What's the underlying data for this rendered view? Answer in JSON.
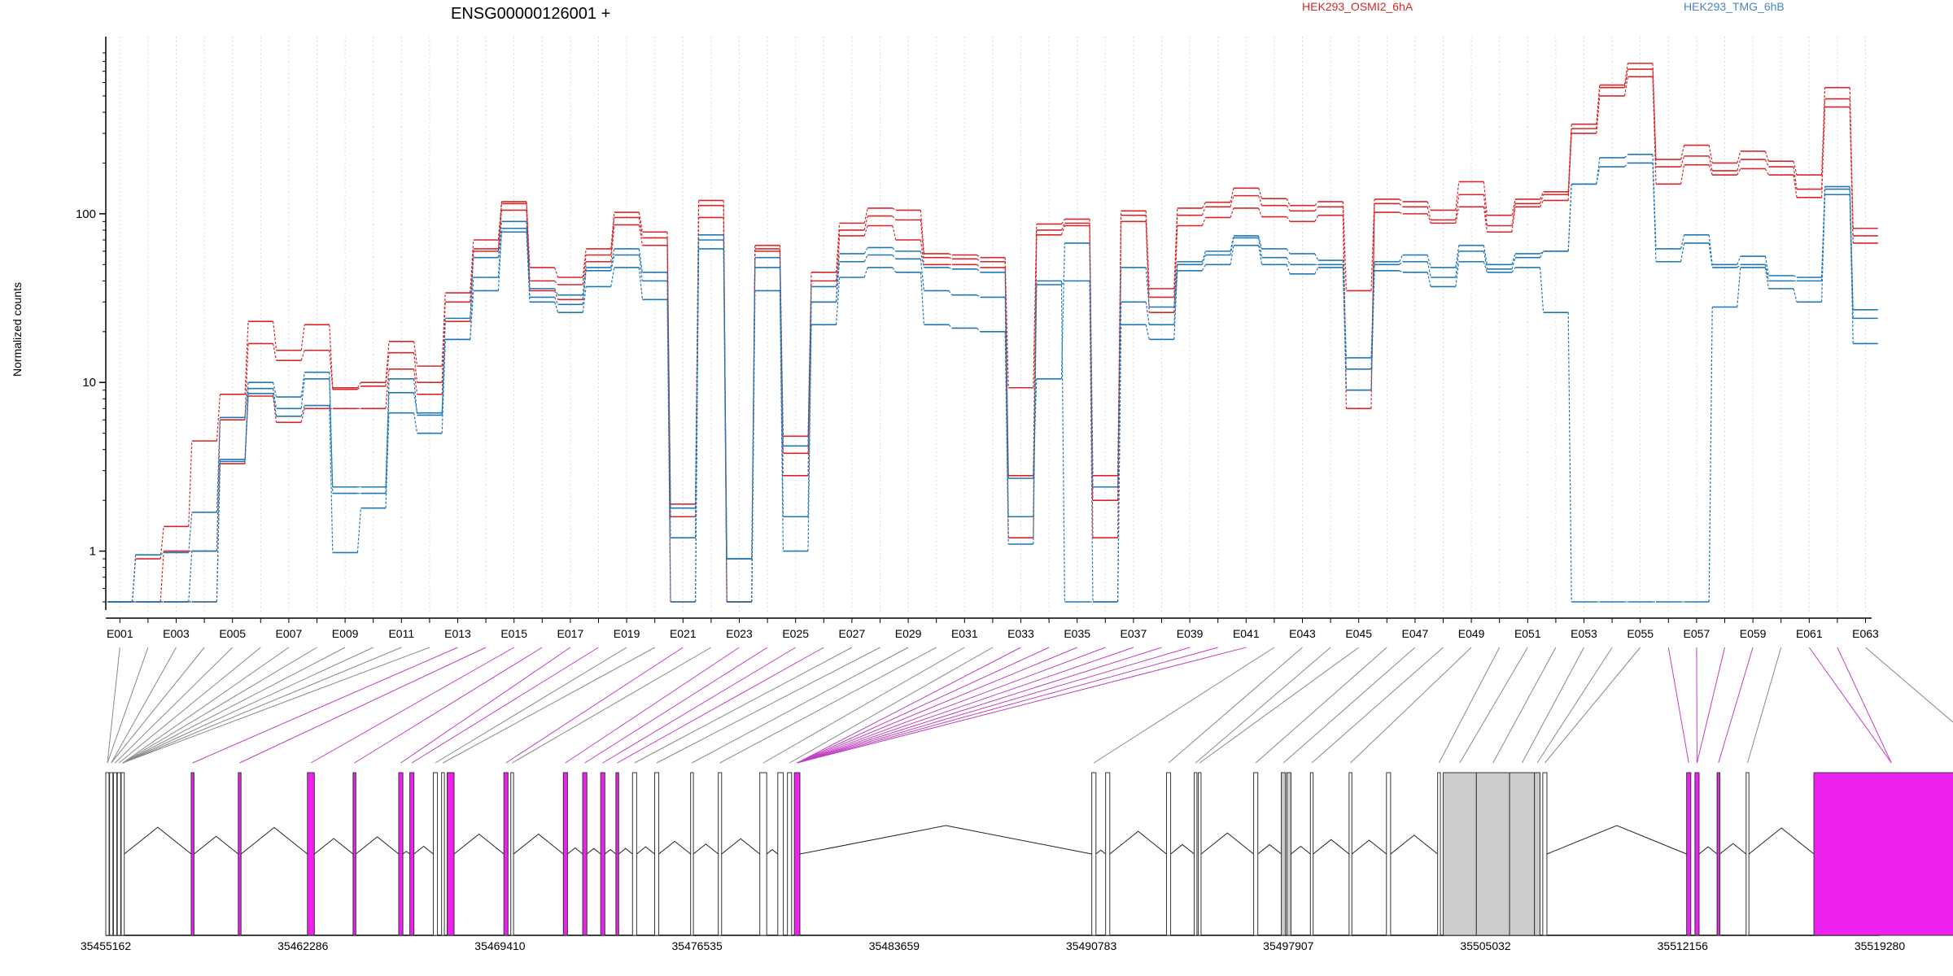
{
  "chart_data": {
    "type": "line",
    "title": "ENSG00000126001 +",
    "ylabel": "Normalized counts",
    "xlabel": "",
    "yscale": "log",
    "ylim": [
      0.5,
      900
    ],
    "yticks": [
      1,
      10,
      100
    ],
    "grid": "vertical dotted lines at each exon bin",
    "legend_position": "top",
    "categories": [
      "E001",
      "E002",
      "E003",
      "E004",
      "E005",
      "E006",
      "E007",
      "E008",
      "E009",
      "E010",
      "E011",
      "E012",
      "E013",
      "E014",
      "E015",
      "E016",
      "E017",
      "E018",
      "E019",
      "E020",
      "E021",
      "E022",
      "E023",
      "E024",
      "E025",
      "E026",
      "E027",
      "E028",
      "E029",
      "E030",
      "E031",
      "E032",
      "E033",
      "E034",
      "E035",
      "E036",
      "E037",
      "E038",
      "E039",
      "E040",
      "E041",
      "E042",
      "E043",
      "E044",
      "E045",
      "E046",
      "E047",
      "E048",
      "E049",
      "E050",
      "E051",
      "E052",
      "E053",
      "E054",
      "E055",
      "E056",
      "E057",
      "E058",
      "E059",
      "E060",
      "E061",
      "E062",
      "E063"
    ],
    "x_tick_labels": [
      "E001",
      "E003",
      "E005",
      "E007",
      "E009",
      "E011",
      "E013",
      "E015",
      "E017",
      "E019",
      "E021",
      "E023",
      "E025",
      "E027",
      "E029",
      "E031",
      "E033",
      "E035",
      "E037",
      "E039",
      "E041",
      "E043",
      "E045",
      "E047",
      "E049",
      "E051",
      "E053",
      "E055",
      "E057",
      "E059",
      "E061",
      "E063"
    ],
    "series": [
      {
        "name": "HEK293_OSMI2_6hA",
        "color": "#d62728",
        "values": [
          0.5,
          0.9,
          1.4,
          4.5,
          8.5,
          23,
          15.5,
          22,
          9.3,
          10,
          17.5,
          12.5,
          34,
          70,
          118,
          48,
          42,
          62,
          102,
          78,
          1.9,
          120,
          0.5,
          65,
          4.8,
          45,
          88,
          108,
          105,
          58,
          57,
          55,
          9.3,
          87,
          93,
          2.8,
          104,
          36,
          108,
          117,
          142,
          123,
          112,
          118,
          35,
          122,
          118,
          105,
          155,
          98,
          122,
          135,
          340,
          580,
          780,
          210,
          255,
          200,
          235,
          205,
          170,
          560,
          82
        ]
      },
      {
        "name": "HEK293_OSMI2_6hA",
        "color": "#d62728",
        "values": [
          0.5,
          0.5,
          1.0,
          1.0,
          6,
          17,
          13.5,
          15.5,
          9.1,
          9.5,
          15,
          10,
          30,
          60,
          115,
          40,
          38,
          57,
          95,
          72,
          1.6,
          112,
          0.5,
          62,
          3.8,
          40,
          80,
          97,
          92,
          55,
          54,
          52,
          2.8,
          80,
          88,
          2.0,
          98,
          32,
          98,
          110,
          128,
          112,
          104,
          110,
          9,
          115,
          110,
          92,
          130,
          85,
          115,
          130,
          320,
          560,
          720,
          190,
          220,
          180,
          210,
          190,
          140,
          480,
          74
        ]
      },
      {
        "name": "HEK293_OSMI2_6hA",
        "color": "#d62728",
        "values": [
          0.5,
          0.5,
          0.5,
          0.5,
          3.3,
          8.3,
          5.8,
          7.0,
          7.0,
          7.0,
          12,
          8.5,
          23,
          62,
          105,
          35,
          31,
          52,
          86,
          65,
          0.5,
          95,
          0.5,
          60,
          2.8,
          30,
          74,
          85,
          70,
          50,
          50,
          48,
          1.2,
          75,
          85,
          1.2,
          90,
          26,
          85,
          95,
          108,
          96,
          90,
          98,
          7,
          102,
          100,
          88,
          110,
          78,
          110,
          120,
          300,
          500,
          650,
          150,
          195,
          170,
          185,
          170,
          125,
          430,
          67
        ]
      },
      {
        "name": "HEK293_TMG_6hB",
        "color": "#1f77b4",
        "values": [
          0.5,
          0.95,
          0.98,
          1.7,
          6.2,
          10,
          8.2,
          11.5,
          2.4,
          2.4,
          10.5,
          6.4,
          24,
          55,
          90,
          36,
          33,
          48,
          62,
          45,
          1.8,
          75,
          0.9,
          55,
          4.2,
          37,
          58,
          63,
          60,
          48,
          47,
          45,
          2.7,
          10.5,
          67,
          2.4,
          48,
          28,
          52,
          60,
          74,
          62,
          58,
          53,
          14,
          52,
          57,
          48,
          65,
          50,
          58,
          60,
          150,
          215,
          225,
          62,
          75,
          50,
          56,
          43,
          42,
          145,
          27
        ]
      },
      {
        "name": "HEK293_TMG_6hB",
        "color": "#1f77b4",
        "values": [
          0.5,
          0.5,
          0.5,
          1.0,
          3.5,
          9.2,
          7.0,
          10.5,
          2.2,
          2.2,
          8.7,
          6.6,
          18,
          42,
          82,
          32,
          29,
          46,
          57,
          40,
          1.2,
          70,
          0.9,
          48,
          1.6,
          30,
          52,
          57,
          54,
          35,
          33,
          32,
          1.6,
          40,
          0.5,
          0.5,
          30,
          22,
          50,
          57,
          72,
          55,
          50,
          50,
          12,
          50,
          52,
          42,
          60,
          47,
          55,
          60,
          150,
          190,
          200,
          52,
          67,
          48,
          50,
          40,
          40,
          140,
          24
        ]
      },
      {
        "name": "HEK293_TMG_6hB",
        "color": "#1f77b4",
        "values": [
          0.5,
          0.5,
          0.5,
          0.5,
          3.4,
          8.6,
          6.3,
          7.3,
          0.98,
          1.8,
          6.6,
          5.0,
          18,
          35,
          78,
          30,
          26,
          37,
          48,
          31,
          0.5,
          62,
          0.5,
          35,
          1.0,
          22,
          42,
          48,
          45,
          22,
          21,
          20,
          1.1,
          38,
          40,
          0.5,
          22,
          18,
          46,
          50,
          65,
          50,
          44,
          48,
          9,
          46,
          45,
          37,
          52,
          45,
          48,
          26,
          0.5,
          0.5,
          0.5,
          0.5,
          0.5,
          28,
          48,
          36,
          30,
          130,
          17
        ]
      }
    ]
  },
  "legend": {
    "labels": [
      "HEK293_OSMI2_6hA",
      "HEK293_TMG_6hB"
    ],
    "colors": [
      "#d62728",
      "#1f77b4"
    ]
  },
  "gene_model": {
    "coordinate_labels": [
      "35455162",
      "35462286",
      "35469410",
      "35476535",
      "35483659",
      "35490783",
      "35497907",
      "35505032",
      "35512156",
      "35519280"
    ],
    "coord_range": [
      35455162,
      35519280
    ],
    "feature_colors": {
      "significant": "#ee22ee",
      "normal": "#ffffff",
      "collapsed": "#cccccc",
      "outline": "#333333"
    },
    "exons": [
      {
        "start": 35455162,
        "end": 35455280,
        "type": "normal"
      },
      {
        "start": 35455300,
        "end": 35455420,
        "type": "normal"
      },
      {
        "start": 35455440,
        "end": 35455560,
        "type": "normal"
      },
      {
        "start": 35455580,
        "end": 35455700,
        "type": "normal"
      },
      {
        "start": 35455720,
        "end": 35455830,
        "type": "normal"
      },
      {
        "start": 35458250,
        "end": 35458350,
        "type": "significant"
      },
      {
        "start": 35459950,
        "end": 35460050,
        "type": "significant"
      },
      {
        "start": 35462450,
        "end": 35462700,
        "type": "significant"
      },
      {
        "start": 35464100,
        "end": 35464200,
        "type": "significant"
      },
      {
        "start": 35465750,
        "end": 35465900,
        "type": "significant"
      },
      {
        "start": 35466150,
        "end": 35466300,
        "type": "significant"
      },
      {
        "start": 35467000,
        "end": 35467150,
        "type": "normal"
      },
      {
        "start": 35467300,
        "end": 35467400,
        "type": "normal"
      },
      {
        "start": 35467500,
        "end": 35467750,
        "type": "significant"
      },
      {
        "start": 35469550,
        "end": 35469700,
        "type": "significant"
      },
      {
        "start": 35469800,
        "end": 35469900,
        "type": "normal"
      },
      {
        "start": 35471700,
        "end": 35471850,
        "type": "significant"
      },
      {
        "start": 35472400,
        "end": 35472550,
        "type": "significant"
      },
      {
        "start": 35473050,
        "end": 35473200,
        "type": "significant"
      },
      {
        "start": 35473600,
        "end": 35473700,
        "type": "significant"
      },
      {
        "start": 35474200,
        "end": 35474350,
        "type": "normal"
      },
      {
        "start": 35475000,
        "end": 35475150,
        "type": "normal"
      },
      {
        "start": 35476300,
        "end": 35476400,
        "type": "normal"
      },
      {
        "start": 35477300,
        "end": 35477420,
        "type": "normal"
      },
      {
        "start": 35478800,
        "end": 35479050,
        "type": "normal"
      },
      {
        "start": 35479450,
        "end": 35479650,
        "type": "normal"
      },
      {
        "start": 35479800,
        "end": 35479950,
        "type": "normal"
      },
      {
        "start": 35480050,
        "end": 35480250,
        "type": "significant"
      },
      {
        "start": 35490800,
        "end": 35490950,
        "type": "normal"
      },
      {
        "start": 35491300,
        "end": 35491450,
        "type": "normal"
      },
      {
        "start": 35493500,
        "end": 35493650,
        "type": "normal"
      },
      {
        "start": 35494500,
        "end": 35494600,
        "type": "normal"
      },
      {
        "start": 35494650,
        "end": 35494750,
        "type": "normal"
      },
      {
        "start": 35496650,
        "end": 35496800,
        "type": "normal"
      },
      {
        "start": 35497650,
        "end": 35497800,
        "type": "collapsed"
      },
      {
        "start": 35497850,
        "end": 35498000,
        "type": "collapsed"
      },
      {
        "start": 35498700,
        "end": 35498800,
        "type": "normal"
      },
      {
        "start": 35500100,
        "end": 35500200,
        "type": "normal"
      },
      {
        "start": 35501450,
        "end": 35501600,
        "type": "normal"
      },
      {
        "start": 35503300,
        "end": 35503400,
        "type": "normal"
      },
      {
        "start": 35503500,
        "end": 35504700,
        "type": "collapsed"
      },
      {
        "start": 35504700,
        "end": 35505900,
        "type": "collapsed"
      },
      {
        "start": 35505900,
        "end": 35506800,
        "type": "collapsed"
      },
      {
        "start": 35506800,
        "end": 35507000,
        "type": "collapsed"
      },
      {
        "start": 35507100,
        "end": 35507250,
        "type": "normal"
      },
      {
        "start": 35512300,
        "end": 35512450,
        "type": "significant"
      },
      {
        "start": 35512600,
        "end": 35512750,
        "type": "significant"
      },
      {
        "start": 35513400,
        "end": 35513500,
        "type": "significant"
      },
      {
        "start": 35514450,
        "end": 35514550,
        "type": "normal"
      },
      {
        "start": 35516900,
        "end": 35522500,
        "type": "significant"
      },
      {
        "start": 35522500,
        "end": 35524800,
        "type": "collapsed"
      }
    ],
    "connectors": [
      {
        "bin": 0,
        "exon": 0,
        "type": "normal"
      },
      {
        "bin": 1,
        "exon": 0,
        "type": "normal"
      },
      {
        "bin": 2,
        "exon": 1,
        "type": "normal"
      },
      {
        "bin": 3,
        "exon": 1,
        "type": "normal"
      },
      {
        "bin": 4,
        "exon": 2,
        "type": "normal"
      },
      {
        "bin": 5,
        "exon": 3,
        "type": "normal"
      },
      {
        "bin": 6,
        "exon": 4,
        "type": "normal"
      },
      {
        "bin": 7,
        "exon": 4,
        "type": "normal"
      },
      {
        "bin": 8,
        "exon": 4,
        "type": "normal"
      },
      {
        "bin": 9,
        "exon": 4,
        "type": "normal"
      },
      {
        "bin": 10,
        "exon": 4,
        "type": "normal"
      },
      {
        "bin": 11,
        "exon": 4,
        "type": "normal"
      },
      {
        "bin": 12,
        "exon": 5,
        "type": "significant"
      },
      {
        "bin": 13,
        "exon": 6,
        "type": "significant"
      },
      {
        "bin": 14,
        "exon": 7,
        "type": "significant"
      },
      {
        "bin": 15,
        "exon": 8,
        "type": "significant"
      },
      {
        "bin": 16,
        "exon": 9,
        "type": "significant"
      },
      {
        "bin": 17,
        "exon": 10,
        "type": "significant"
      },
      {
        "bin": 18,
        "exon": 11,
        "type": "normal"
      },
      {
        "bin": 19,
        "exon": 12,
        "type": "normal"
      },
      {
        "bin": 20,
        "exon": 14,
        "type": "significant"
      },
      {
        "bin": 21,
        "exon": 15,
        "type": "normal"
      },
      {
        "bin": 22,
        "exon": 16,
        "type": "significant"
      },
      {
        "bin": 23,
        "exon": 17,
        "type": "significant"
      },
      {
        "bin": 24,
        "exon": 18,
        "type": "significant"
      },
      {
        "bin": 25,
        "exon": 19,
        "type": "significant"
      },
      {
        "bin": 26,
        "exon": 20,
        "type": "normal"
      },
      {
        "bin": 27,
        "exon": 21,
        "type": "normal"
      },
      {
        "bin": 28,
        "exon": 22,
        "type": "normal"
      },
      {
        "bin": 29,
        "exon": 23,
        "type": "normal"
      },
      {
        "bin": 30,
        "exon": 24,
        "type": "normal"
      },
      {
        "bin": 31,
        "exon": 26,
        "type": "normal"
      },
      {
        "bin": 32,
        "exon": 27,
        "type": "significant"
      },
      {
        "bin": 33,
        "exon": 27,
        "type": "significant"
      },
      {
        "bin": 34,
        "exon": 27,
        "type": "significant"
      },
      {
        "bin": 35,
        "exon": 27,
        "type": "significant"
      },
      {
        "bin": 36,
        "exon": 27,
        "type": "significant"
      },
      {
        "bin": 37,
        "exon": 27,
        "type": "significant"
      },
      {
        "bin": 38,
        "exon": 27,
        "type": "significant"
      },
      {
        "bin": 39,
        "exon": 27,
        "type": "significant"
      },
      {
        "bin": 40,
        "exon": 27,
        "type": "significant"
      },
      {
        "bin": 41,
        "exon": 28,
        "type": "normal"
      },
      {
        "bin": 42,
        "exon": 30,
        "type": "normal"
      },
      {
        "bin": 43,
        "exon": 31,
        "type": "normal"
      },
      {
        "bin": 44,
        "exon": 32,
        "type": "normal"
      },
      {
        "bin": 45,
        "exon": 33,
        "type": "normal"
      },
      {
        "bin": 46,
        "exon": 34,
        "type": "normal"
      },
      {
        "bin": 47,
        "exon": 36,
        "type": "normal"
      },
      {
        "bin": 48,
        "exon": 37,
        "type": "normal"
      },
      {
        "bin": 49,
        "exon": 39,
        "type": "normal"
      },
      {
        "bin": 50,
        "exon": 40,
        "type": "normal"
      },
      {
        "bin": 51,
        "exon": 41,
        "type": "normal"
      },
      {
        "bin": 52,
        "exon": 42,
        "type": "normal"
      },
      {
        "bin": 53,
        "exon": 43,
        "type": "normal"
      },
      {
        "bin": 54,
        "exon": 44,
        "type": "normal"
      },
      {
        "bin": 55,
        "exon": 45,
        "type": "significant"
      },
      {
        "bin": 56,
        "exon": 46,
        "type": "significant"
      },
      {
        "bin": 57,
        "exon": 46,
        "type": "significant"
      },
      {
        "bin": 58,
        "exon": 47,
        "type": "significant"
      },
      {
        "bin": 59,
        "exon": 48,
        "type": "normal"
      },
      {
        "bin": 60,
        "exon": 49,
        "type": "significant"
      },
      {
        "bin": 61,
        "exon": 49,
        "type": "significant"
      },
      {
        "bin": 62,
        "exon": 50,
        "type": "normal"
      }
    ]
  }
}
